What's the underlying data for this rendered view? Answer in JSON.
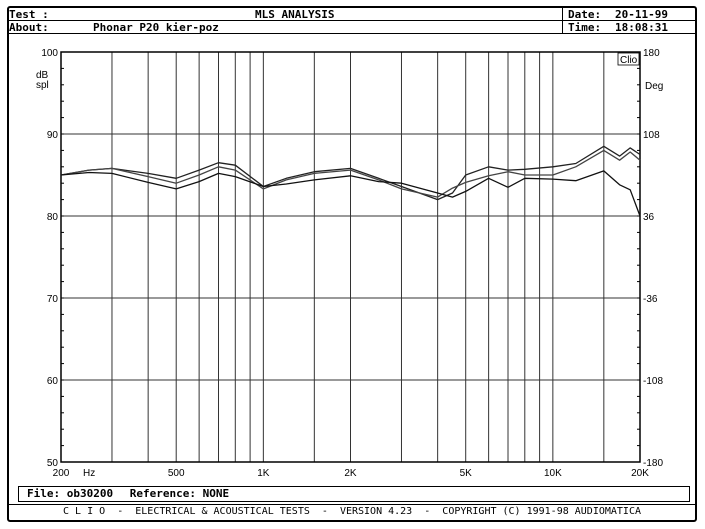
{
  "header": {
    "test_label": "Test :",
    "title": "MLS ANALYSIS",
    "about_label": "About:",
    "about_value": "Phonar P20 kier-poz",
    "date_label": "Date:",
    "date_value": "20-11-99",
    "time_label": "Time:",
    "time_value": "18:08:31"
  },
  "footer": {
    "file_label": "File:",
    "file_value": "ob30200",
    "reference_label": "Reference:",
    "reference_value": "NONE",
    "credits": "C L I O  -  ELECTRICAL & ACOUSTICAL TESTS  -  VERSION 4.23  -  COPYRIGHT (C) 1991-98 AUDIOMATICA"
  },
  "chart_data": {
    "type": "line",
    "logo": "Clio",
    "ylabel": "dB spl",
    "ylabel_lines": [
      "dB",
      "spl"
    ],
    "y2label": "Deg",
    "xunit": "Hz",
    "xscale": "log",
    "xlim": [
      200,
      20000
    ],
    "ylim": [
      50,
      100
    ],
    "y2lim": [
      -180,
      180
    ],
    "grid": true,
    "x_ticks": [
      {
        "value": 200,
        "label": "200"
      },
      {
        "value": 500,
        "label": "500"
      },
      {
        "value": 1000,
        "label": "1K"
      },
      {
        "value": 2000,
        "label": "2K"
      },
      {
        "value": 5000,
        "label": "5K"
      },
      {
        "value": 10000,
        "label": "10K"
      },
      {
        "value": 20000,
        "label": "20K"
      }
    ],
    "x_gridlines": [
      300,
      400,
      500,
      600,
      700,
      800,
      900,
      1000,
      1500,
      2000,
      3000,
      4000,
      5000,
      6000,
      7000,
      8000,
      9000,
      10000,
      15000
    ],
    "y_ticks": [
      {
        "value": 100,
        "label": "100",
        "deg": "180"
      },
      {
        "value": 90,
        "label": "90",
        "deg": "108"
      },
      {
        "value": 80,
        "label": "80",
        "deg": "36"
      },
      {
        "value": 70,
        "label": "70",
        "deg": "-36"
      },
      {
        "value": 60,
        "label": "60",
        "deg": "-108"
      },
      {
        "value": 50,
        "label": "50",
        "deg": "-180"
      }
    ],
    "x": [
      200,
      250,
      300,
      400,
      500,
      600,
      700,
      800,
      1000,
      1200,
      1500,
      2000,
      2500,
      3000,
      4000,
      4500,
      5000,
      6000,
      7000,
      8000,
      10000,
      12000,
      15000,
      17000,
      18500,
      20000
    ],
    "series": [
      {
        "values": [
          85.0,
          85.6,
          85.8,
          85.2,
          84.6,
          85.6,
          86.5,
          86.2,
          83.6,
          84.6,
          85.4,
          85.8,
          84.6,
          83.6,
          82.0,
          82.8,
          85.0,
          86.0,
          85.6,
          85.7,
          86.0,
          86.4,
          88.5,
          87.3,
          88.3,
          87.5
        ]
      },
      {
        "values": [
          85.0,
          85.6,
          85.8,
          84.8,
          84.0,
          85.0,
          86.0,
          85.6,
          83.3,
          84.4,
          85.2,
          85.6,
          84.4,
          83.3,
          82.3,
          83.4,
          84.1,
          84.9,
          85.4,
          85.0,
          85.0,
          86.0,
          88.0,
          86.8,
          87.8,
          86.8
        ]
      },
      {
        "values": [
          85.0,
          85.3,
          85.2,
          84.1,
          83.3,
          84.2,
          85.2,
          84.8,
          83.6,
          83.9,
          84.4,
          84.9,
          84.2,
          84.0,
          82.8,
          82.3,
          83.0,
          84.6,
          83.5,
          84.6,
          84.5,
          84.3,
          85.5,
          83.8,
          83.2,
          80.0
        ]
      }
    ]
  }
}
